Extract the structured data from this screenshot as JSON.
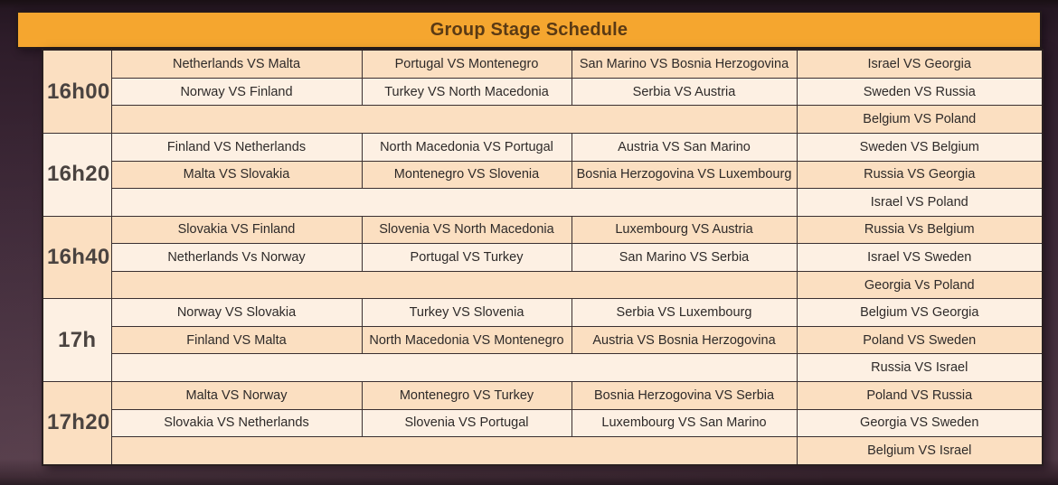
{
  "title": "Group Stage Schedule",
  "colors": {
    "header_bg": "#f5a62f",
    "header_text": "#5a3a14",
    "row_peach": "#fbdfc1",
    "row_cream": "#fdf0e3",
    "cell_text": "#2e2a29",
    "time_text": "#4a4340",
    "border": "#3a3031",
    "background_top": "#191014",
    "background_bottom": "#503845"
  },
  "schedule": [
    {
      "time": "16h00",
      "matches": [
        [
          "Netherlands VS Malta",
          "Portugal VS Montenegro",
          "San Marino VS Bosnia Herzogovina",
          "Israel VS Georgia"
        ],
        [
          "Norway VS Finland",
          "Turkey VS North Macedonia",
          "Serbia VS Austria",
          "Sweden VS Russia"
        ]
      ],
      "late_match": "Belgium VS Poland"
    },
    {
      "time": "16h20",
      "matches": [
        [
          "Finland VS Netherlands",
          "North Macedonia VS Portugal",
          "Austria VS San Marino",
          "Sweden VS Belgium"
        ],
        [
          "Malta VS Slovakia",
          "Montenegro VS Slovenia",
          "Bosnia Herzogovina VS Luxembourg",
          "Russia VS Georgia"
        ]
      ],
      "late_match": "Israel VS Poland"
    },
    {
      "time": "16h40",
      "matches": [
        [
          "Slovakia VS Finland",
          "Slovenia VS North Macedonia",
          "Luxembourg VS Austria",
          "Russia Vs Belgium"
        ],
        [
          "Netherlands Vs Norway",
          "Portugal VS Turkey",
          "San Marino VS Serbia",
          "Israel VS Sweden"
        ]
      ],
      "late_match": "Georgia Vs Poland"
    },
    {
      "time": "17h",
      "matches": [
        [
          "Norway VS Slovakia",
          "Turkey VS Slovenia",
          "Serbia VS Luxembourg",
          "Belgium VS Georgia"
        ],
        [
          "Finland VS Malta",
          "North Macedonia VS Montenegro",
          "Austria VS Bosnia Herzogovina",
          "Poland VS Sweden"
        ]
      ],
      "late_match": "Russia VS Israel"
    },
    {
      "time": "17h20",
      "matches": [
        [
          "Malta VS Norway",
          "Montenegro VS Turkey",
          "Bosnia Herzogovina VS Serbia",
          "Poland VS Russia"
        ],
        [
          "Slovakia VS Netherlands",
          "Slovenia VS Portugal",
          "Luxembourg VS San Marino",
          "Georgia VS Sweden"
        ]
      ],
      "late_match": "Belgium VS Israel"
    }
  ]
}
